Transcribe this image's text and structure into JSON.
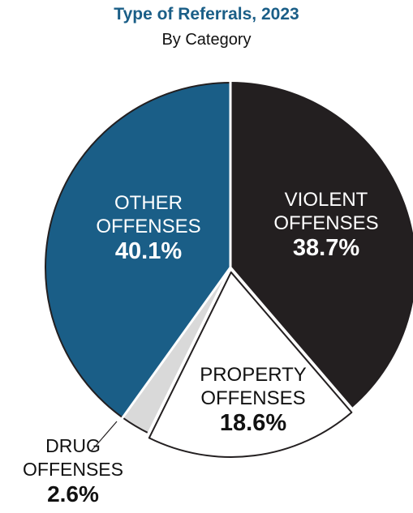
{
  "chart_data": {
    "type": "pie",
    "title": "Type of Referrals, 2023",
    "subtitle": "By Category",
    "slices": [
      {
        "name": "violent",
        "label_lines": [
          "VIOLENT",
          "OFFENSES"
        ],
        "value": 38.7,
        "value_text": "38.7%",
        "color": "#231f20",
        "text_color": "#ffffff"
      },
      {
        "name": "property",
        "label_lines": [
          "PROPERTY",
          "OFFENSES"
        ],
        "value": 18.6,
        "value_text": "18.6%",
        "color": "#ffffff",
        "text_color": "#111111"
      },
      {
        "name": "drug",
        "label_lines": [
          "DRUG",
          "OFFENSES"
        ],
        "value": 2.6,
        "value_text": "2.6%",
        "color": "#d9d9d9",
        "text_color": "#111111"
      },
      {
        "name": "other",
        "label_lines": [
          "OTHER",
          "OFFENSES"
        ],
        "value": 40.1,
        "value_text": "40.1%",
        "color": "#1a5e87",
        "text_color": "#ffffff"
      }
    ]
  }
}
